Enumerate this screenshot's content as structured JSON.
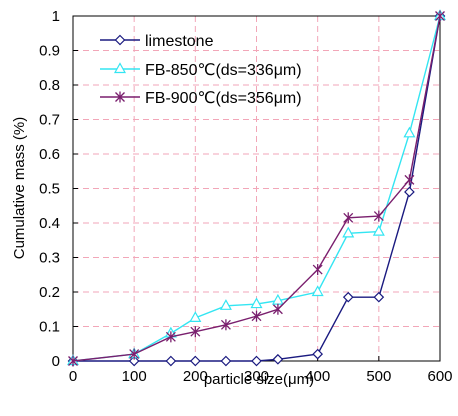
{
  "chart_data": {
    "type": "line",
    "title": "",
    "xlabel": "particle size(μm)",
    "ylabel": "Cumulative mass (%)",
    "xlim": [
      0,
      600
    ],
    "ylim": [
      0,
      1
    ],
    "xticks": [
      "0",
      "100",
      "200",
      "300",
      "400",
      "500",
      "600"
    ],
    "yticks": [
      "0",
      "0.1",
      "0.2",
      "0.3",
      "0.4",
      "0.5",
      "0.6",
      "0.7",
      "0.8",
      "0.9",
      "1"
    ],
    "grid": "dashed",
    "legend": "top-left",
    "series": [
      {
        "name": "limestone",
        "color": "#1a1a80",
        "marker": "diamond",
        "x": [
          0,
          100,
          160,
          200,
          250,
          300,
          335,
          400,
          450,
          500,
          550,
          600
        ],
        "y": [
          0,
          0,
          0,
          0,
          0,
          0,
          0.005,
          0.02,
          0.185,
          0.185,
          0.49,
          1.0
        ]
      },
      {
        "name": "FB-850℃(ds=336μm)",
        "color": "#33e5f2",
        "marker": "triangle",
        "x": [
          0,
          100,
          160,
          200,
          250,
          300,
          335,
          400,
          450,
          500,
          550,
          600
        ],
        "y": [
          0,
          0.02,
          0.08,
          0.125,
          0.16,
          0.165,
          0.175,
          0.2,
          0.37,
          0.375,
          0.66,
          1.0
        ]
      },
      {
        "name": "FB-900℃(ds=356μm)",
        "color": "#7a1f6e",
        "marker": "star",
        "x": [
          0,
          100,
          160,
          200,
          250,
          300,
          335,
          400,
          450,
          500,
          550,
          600
        ],
        "y": [
          0,
          0.02,
          0.07,
          0.085,
          0.105,
          0.13,
          0.15,
          0.265,
          0.415,
          0.42,
          0.525,
          1.0
        ]
      }
    ]
  }
}
